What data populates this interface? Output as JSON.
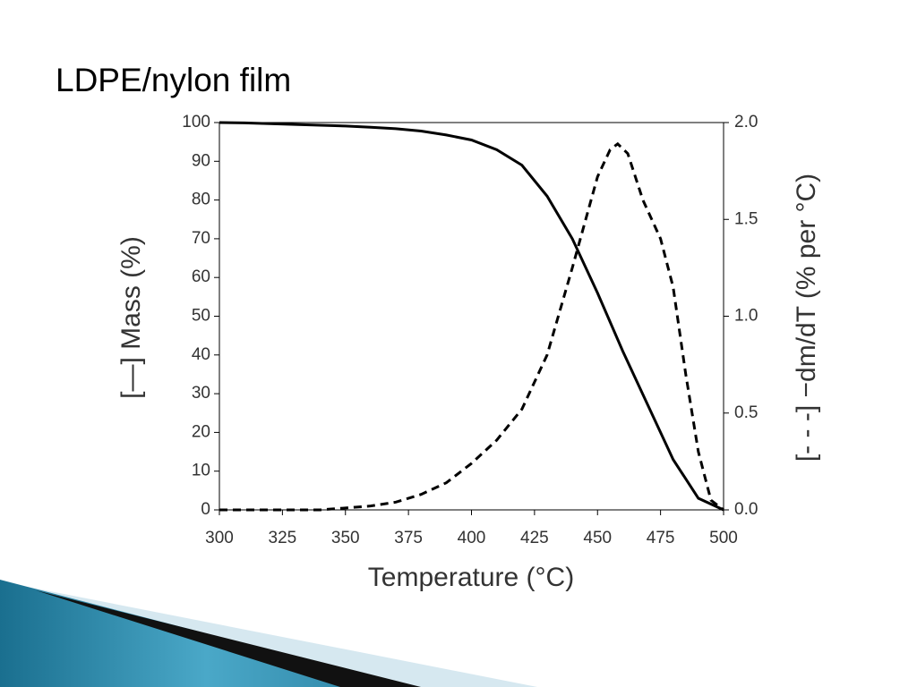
{
  "chart_data": {
    "type": "line",
    "title": "LDPE/nylon film",
    "xlabel": "Temperature (°C)",
    "ylabel": "[—] Mass (%)",
    "y2label": "[- - -] −dm/dT (% per °C)",
    "xlim": [
      300,
      500
    ],
    "ylim": [
      0,
      100
    ],
    "y2lim": [
      0,
      2
    ],
    "xticks": [
      300,
      325,
      350,
      375,
      400,
      425,
      450,
      475,
      500
    ],
    "yticks": [
      0,
      10,
      20,
      30,
      40,
      50,
      60,
      70,
      80,
      90,
      100
    ],
    "y2ticks": [
      {
        "value": 0,
        "label": "0.0"
      },
      {
        "value": 0.5,
        "label": "0.5"
      },
      {
        "value": 1,
        "label": "1.0"
      },
      {
        "value": 1.5,
        "label": "1.5"
      },
      {
        "value": 2,
        "label": "2.0"
      }
    ],
    "series": [
      {
        "name": "Mass",
        "color": "#000000",
        "dash": false,
        "x": [
          300,
          310,
          320,
          330,
          340,
          350,
          360,
          370,
          380,
          390,
          400,
          410,
          420,
          430,
          440,
          450,
          460,
          470,
          480,
          490,
          500
        ],
        "values": [
          100,
          99.9,
          99.7,
          99.5,
          99.3,
          99.1,
          98.8,
          98.4,
          97.8,
          96.8,
          95.5,
          93,
          89,
          81,
          70,
          56,
          41,
          27,
          13,
          3,
          0
        ]
      },
      {
        "name": "dm/dT",
        "color": "#000000",
        "dash": true,
        "axis": "y2",
        "x": [
          300,
          320,
          340,
          350,
          360,
          370,
          380,
          390,
          400,
          410,
          420,
          430,
          440,
          450,
          455,
          458,
          462,
          468,
          475,
          480,
          485,
          490,
          495,
          500
        ],
        "values": [
          0,
          0,
          0,
          0.01,
          0.02,
          0.04,
          0.08,
          0.14,
          0.24,
          0.36,
          0.52,
          0.8,
          1.25,
          1.72,
          1.86,
          1.89,
          1.84,
          1.6,
          1.4,
          1.15,
          0.7,
          0.3,
          0.05,
          0
        ]
      }
    ]
  }
}
